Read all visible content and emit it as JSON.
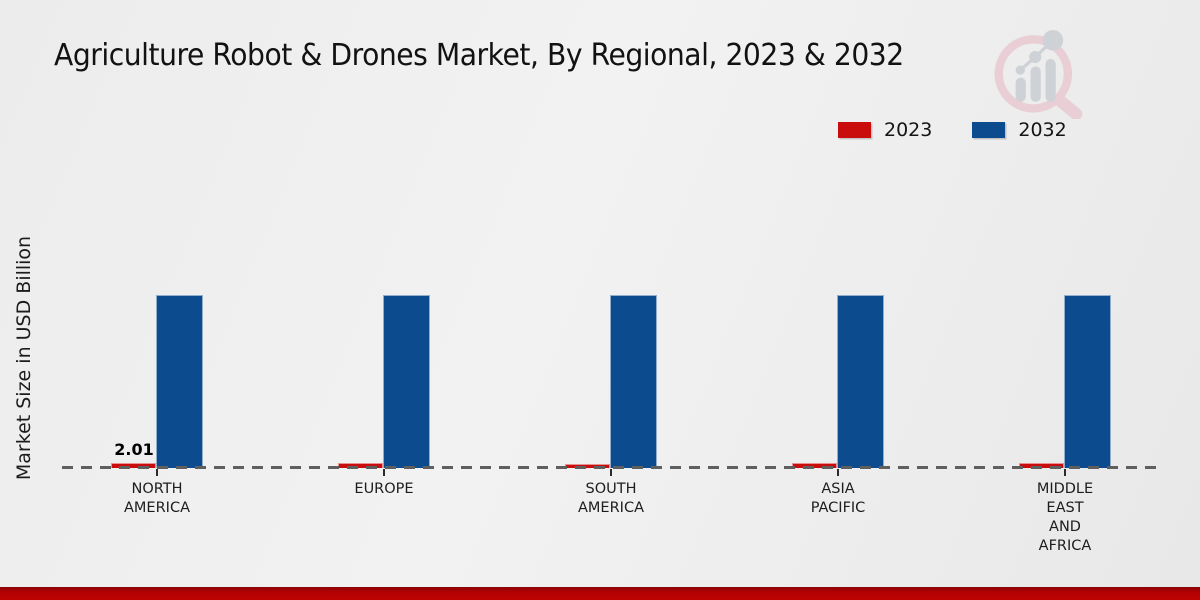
{
  "chart_data": {
    "type": "bar",
    "title": "Agriculture Robot & Drones Market, By Regional, 2023 & 2032",
    "ylabel": "Market Size in USD Billion",
    "categories": [
      "NORTH\nAMERICA",
      "EUROPE",
      "SOUTH\nAMERICA",
      "ASIA\nPACIFIC",
      "MIDDLE\nEAST\nAND\nAFRICA"
    ],
    "series": [
      {
        "name": "2023",
        "color": "#c90d0d",
        "values": [
          2.01,
          1.9,
          1.6,
          1.9,
          1.9
        ],
        "data_labels": [
          "2.01",
          "",
          "",
          "",
          ""
        ]
      },
      {
        "name": "2032",
        "color": "#0c4c8e",
        "values": [
          69,
          69,
          69,
          69,
          69
        ],
        "data_labels": [
          "",
          "",
          "",
          "",
          ""
        ]
      }
    ],
    "ylim": [
      0,
      75
    ],
    "grid": false,
    "legend_position": "top-right",
    "baseline_style": "dashed",
    "note": "Only the North America 2023 bar shows a printed value (2.01); other values are estimated from relative bar heights — no numeric axis is displayed."
  },
  "colors": {
    "series_2023": "#c90d0d",
    "series_2032": "#0c4c8e",
    "baseline_dash": "#5f5f5f",
    "text": "#1a1a1a",
    "background": "#ededed",
    "footer_bar": "#b30202",
    "logo_pink": "#e9ced6",
    "logo_gray": "#ced2d7"
  },
  "icons": {
    "logo": "market-research-future-watermark"
  }
}
